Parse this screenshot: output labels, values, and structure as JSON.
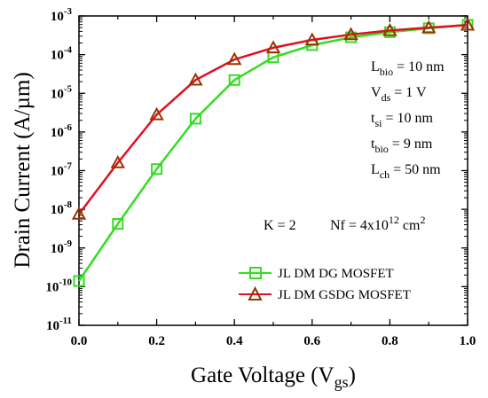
{
  "chart_data": {
    "type": "line",
    "xlabel": {
      "main": "Gate Voltage (V",
      "sub": "gs",
      "close": ")"
    },
    "ylabel": "Drain Current (A/µm)",
    "xlim": [
      0.0,
      1.0
    ],
    "ylim_exponent": [
      -11,
      -3
    ],
    "y_scale": "log",
    "x_ticks": [
      "0.0",
      "0.2",
      "0.4",
      "0.6",
      "0.8",
      "1.0"
    ],
    "x_tick_values": [
      0.0,
      0.2,
      0.4,
      0.6,
      0.8,
      1.0
    ],
    "y_tick_exponents": [
      -11,
      -10,
      -9,
      -8,
      -7,
      -6,
      -5,
      -4,
      -3
    ],
    "y_tick_base": "10",
    "legend_position": "bottom-right",
    "series": [
      {
        "name": "JL DM DG MOSFET",
        "color": "#33dd22",
        "marker": "square",
        "x": [
          0.0,
          0.1,
          0.2,
          0.3,
          0.4,
          0.5,
          0.6,
          0.7,
          0.8,
          0.9,
          1.0
        ],
        "y": [
          1.4e-10,
          4.2e-09,
          1.1e-07,
          2.2e-06,
          2.2e-05,
          8.5e-05,
          0.000175,
          0.00028,
          0.00038,
          0.00048,
          0.00059
        ]
      },
      {
        "name": "JL DM GSDG MOSFET",
        "color": "#dd1122",
        "marker": "triangle",
        "marker_edge": "#993300",
        "x": [
          0.0,
          0.1,
          0.2,
          0.3,
          0.4,
          0.5,
          0.6,
          0.7,
          0.8,
          0.9,
          1.0
        ],
        "y": [
          7.5e-09,
          1.6e-07,
          2.8e-06,
          2.2e-05,
          7.5e-05,
          0.00015,
          0.00024,
          0.00033,
          0.00042,
          0.0005,
          0.00058
        ]
      }
    ],
    "annotations": {
      "lbio": {
        "main": "L",
        "sub": "bio",
        "rest": " = 10 nm"
      },
      "vds": {
        "main": "V",
        "sub": "ds",
        "rest": " = 1 V"
      },
      "tsi": {
        "main": "t",
        "sub": "si",
        "rest": " = 10 nm"
      },
      "tbio": {
        "main": "t",
        "sub": "bio",
        "rest": " = 9 nm"
      },
      "lch": {
        "main": "L",
        "sub": "ch",
        "rest": " = 50 nm"
      },
      "k": "K = 2",
      "nf": {
        "main": "Nf = 4x10",
        "sup1": "12",
        "mid": " cm",
        "sup2": "2"
      }
    }
  }
}
